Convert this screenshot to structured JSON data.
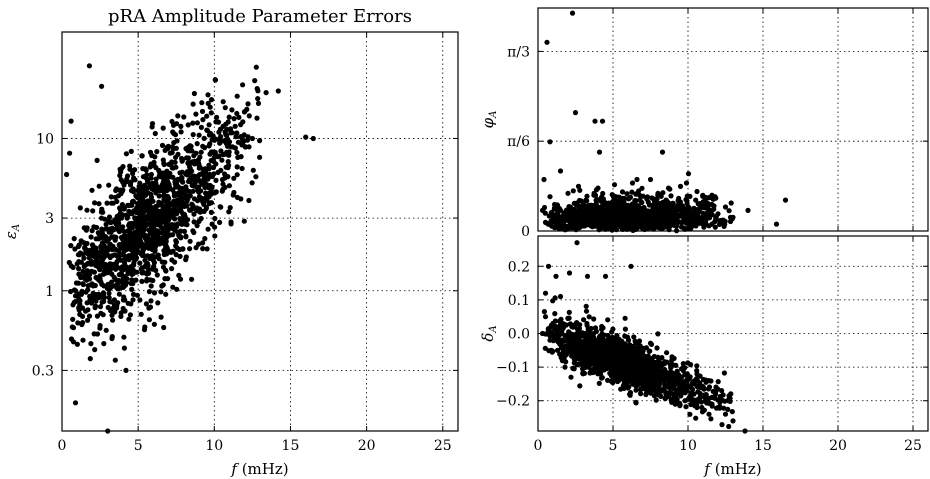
{
  "figure": {
    "title": "pRA Amplitude Parameter Errors",
    "point_color": "#000000"
  },
  "chart_data": [
    {
      "type": "scatter",
      "panel": "left",
      "title": "pRA Amplitude Parameter Errors",
      "xlabel": "f (mHz)",
      "ylabel": "εA",
      "xlim": [
        0,
        26
      ],
      "ylim": [
        0.12,
        50
      ],
      "yscale": "log",
      "xticks": [
        0,
        5,
        10,
        15,
        20,
        25
      ],
      "xtick_labels": [
        "0",
        "5",
        "10",
        "15",
        "20",
        "25"
      ],
      "yticks": [
        0.3,
        1,
        3,
        10
      ],
      "ytick_labels": [
        "0.3",
        "1",
        "3",
        "10"
      ],
      "grid": true,
      "points_approx": 1600,
      "series": [
        {
          "x": [
            0.3,
            0.5,
            0.6,
            0.8,
            1.0,
            1.1,
            1.3,
            1.5,
            1.6,
            1.9,
            2.1,
            2.4,
            2.6,
            2.9,
            3.0,
            3.2,
            3.5,
            3.7,
            4.0,
            4.2,
            4.5,
            4.7,
            5.0,
            5.2,
            5.5,
            5.8,
            6.0,
            6.3,
            6.6,
            6.9,
            7.2,
            7.5,
            7.8,
            8.0,
            8.3,
            8.6,
            9.0,
            9.3,
            9.6,
            10.0,
            10.3,
            10.7,
            11.0,
            11.5,
            12.0,
            12.5,
            13.4,
            14.2,
            16.0,
            16.5,
            1.2,
            2.0,
            2.8,
            3.6,
            4.4,
            5.1,
            5.9,
            6.7,
            7.4,
            8.2,
            9.1,
            10.1,
            11.2,
            12.9,
            0.9,
            1.7,
            2.5,
            3.3,
            4.1,
            4.9,
            5.7,
            6.5,
            7.3,
            8.1,
            8.9,
            9.7,
            10.5,
            11.3,
            0.7,
            1.4,
            2.2,
            3.1,
            3.9,
            4.8,
            5.6,
            6.4,
            7.1,
            7.9,
            8.8,
            9.5,
            10.4,
            3.0,
            3.3,
            4.1,
            2.6,
            1.8
          ],
          "y": [
            5.8,
            8.0,
            13.0,
            2.2,
            1.5,
            0.95,
            0.6,
            1.2,
            2.5,
            0.45,
            1.9,
            0.9,
            3.0,
            0.55,
            1.4,
            2.8,
            0.35,
            4.2,
            1.1,
            0.3,
            2.6,
            5.5,
            1.8,
            0.7,
            3.8,
            6.5,
            2.2,
            4.8,
            9.0,
            3.2,
            7.0,
            5.0,
            12.0,
            2.9,
            8.5,
            4.5,
            10.5,
            6.0,
            17.0,
            7.5,
            11.0,
            5.5,
            9.5,
            6.5,
            15.0,
            10.0,
            20.0,
            20.5,
            10.2,
            10.0,
            3.5,
            2.0,
            1.3,
            0.8,
            1.6,
            2.3,
            3.1,
            4.0,
            2.5,
            3.6,
            5.2,
            6.8,
            8.8,
            17.0,
            1.0,
            0.75,
            1.2,
            1.7,
            2.1,
            2.7,
            1.9,
            2.4,
            3.3,
            4.3,
            3.9,
            5.8,
            7.2,
            13.5,
            0.65,
            1.1,
            1.5,
            0.9,
            1.3,
            1.6,
            2.0,
            2.9,
            3.7,
            6.0,
            8.0,
            14.0,
            11.5,
            0.12,
            0.5,
            0.42,
            22.0,
            30.0
          ]
        }
      ]
    },
    {
      "type": "scatter",
      "panel": "right-top",
      "xlabel": "",
      "ylabel": "φA",
      "xlim": [
        0,
        26
      ],
      "ylim": [
        0,
        1.3
      ],
      "xticks": [
        0,
        5,
        10,
        15,
        20,
        25
      ],
      "xtick_labels": [
        "0",
        "5",
        "10",
        "15",
        "20",
        "25"
      ],
      "yticks": [
        0,
        0.5236,
        1.0472
      ],
      "ytick_labels": [
        "0",
        "π/6",
        "π/3"
      ],
      "grid": true,
      "series": [
        {
          "x": [
            0.3,
            0.5,
            0.8,
            1.0,
            1.3,
            1.6,
            2.0,
            2.4,
            2.8,
            3.2,
            3.6,
            4.0,
            4.4,
            4.8,
            5.2,
            5.6,
            6.0,
            6.4,
            6.8,
            7.2,
            7.6,
            8.0,
            8.4,
            8.8,
            9.2,
            9.6,
            10.0,
            10.4,
            10.8,
            11.2,
            11.6,
            12.0,
            12.5,
            13.0,
            14.0,
            16.5,
            15.9,
            0.6,
            0.8,
            2.3,
            2.5,
            3.8,
            4.3,
            4.1,
            6.6,
            8.3,
            9.9,
            0.4,
            1.5,
            2.7,
            3.9,
            5.1,
            6.3,
            7.5,
            8.7,
            9.5,
            10.6,
            11.8,
            1.1,
            1.9,
            3.1,
            4.6,
            5.9,
            7.1,
            8.2,
            9.8
          ],
          "y": [
            0.12,
            0.05,
            0.2,
            0.08,
            0.15,
            0.03,
            0.22,
            0.1,
            0.06,
            0.18,
            0.04,
            0.25,
            0.12,
            0.07,
            0.2,
            0.09,
            0.15,
            0.05,
            0.18,
            0.11,
            0.08,
            0.22,
            0.06,
            0.14,
            0.1,
            0.05,
            0.12,
            0.07,
            0.16,
            0.09,
            0.04,
            0.1,
            0.14,
            0.08,
            0.12,
            0.18,
            0.04,
            1.1,
            0.52,
            1.27,
            0.69,
            0.64,
            0.64,
            0.46,
            0.3,
            0.46,
            0.28,
            0.3,
            0.35,
            0.26,
            0.24,
            0.27,
            0.28,
            0.3,
            0.25,
            0.26,
            0.23,
            0.2,
            0.02,
            0.01,
            0.03,
            0.02,
            0.01,
            0.03,
            0.02,
            0.01
          ]
        }
      ]
    },
    {
      "type": "scatter",
      "panel": "right-bottom",
      "xlabel": "f (mHz)",
      "ylabel": "δA",
      "xlim": [
        0,
        26
      ],
      "ylim": [
        -0.29,
        0.29
      ],
      "xticks": [
        0,
        5,
        10,
        15,
        20,
        25
      ],
      "xtick_labels": [
        "0",
        "5",
        "10",
        "15",
        "20",
        "25"
      ],
      "yticks": [
        -0.2,
        -0.1,
        0.0,
        0.1,
        0.2
      ],
      "ytick_labels": [
        "−0.2",
        "−0.1",
        "0.0",
        "0.1",
        "0.2"
      ],
      "grid": true,
      "series": [
        {
          "x": [
            0.3,
            0.5,
            0.8,
            1.0,
            1.3,
            1.6,
            2.0,
            2.4,
            2.8,
            3.2,
            3.6,
            4.0,
            4.4,
            4.8,
            5.2,
            5.6,
            6.0,
            6.4,
            6.8,
            7.2,
            7.6,
            8.0,
            8.4,
            8.8,
            9.2,
            9.6,
            10.0,
            10.4,
            10.8,
            11.2,
            11.6,
            12.0,
            12.5,
            13.0,
            13.8,
            0.7,
            1.2,
            2.1,
            2.6,
            3.3,
            1.5,
            0.5,
            4.5,
            6.2,
            1.8,
            2.2,
            3.0,
            3.7,
            4.2,
            5.0,
            5.8,
            6.6,
            7.4,
            8.2,
            9.0,
            9.8,
            10.6,
            11.4
          ],
          "y": [
            0.0,
            0.05,
            -0.02,
            0.03,
            -0.05,
            0.01,
            -0.04,
            0.02,
            -0.06,
            -0.03,
            -0.05,
            -0.07,
            -0.04,
            -0.08,
            -0.06,
            -0.09,
            -0.07,
            -0.1,
            -0.09,
            -0.12,
            -0.11,
            -0.13,
            -0.14,
            -0.15,
            -0.14,
            -0.17,
            -0.16,
            -0.18,
            -0.19,
            -0.2,
            -0.21,
            -0.22,
            -0.24,
            -0.26,
            -0.29,
            0.2,
            0.17,
            0.18,
            0.27,
            0.17,
            0.11,
            0.12,
            0.17,
            0.2,
            -0.1,
            -0.13,
            -0.12,
            -0.11,
            -0.1,
            -0.13,
            -0.12,
            -0.15,
            -0.16,
            -0.17,
            -0.2,
            -0.2,
            -0.22,
            -0.24
          ]
        }
      ]
    }
  ]
}
